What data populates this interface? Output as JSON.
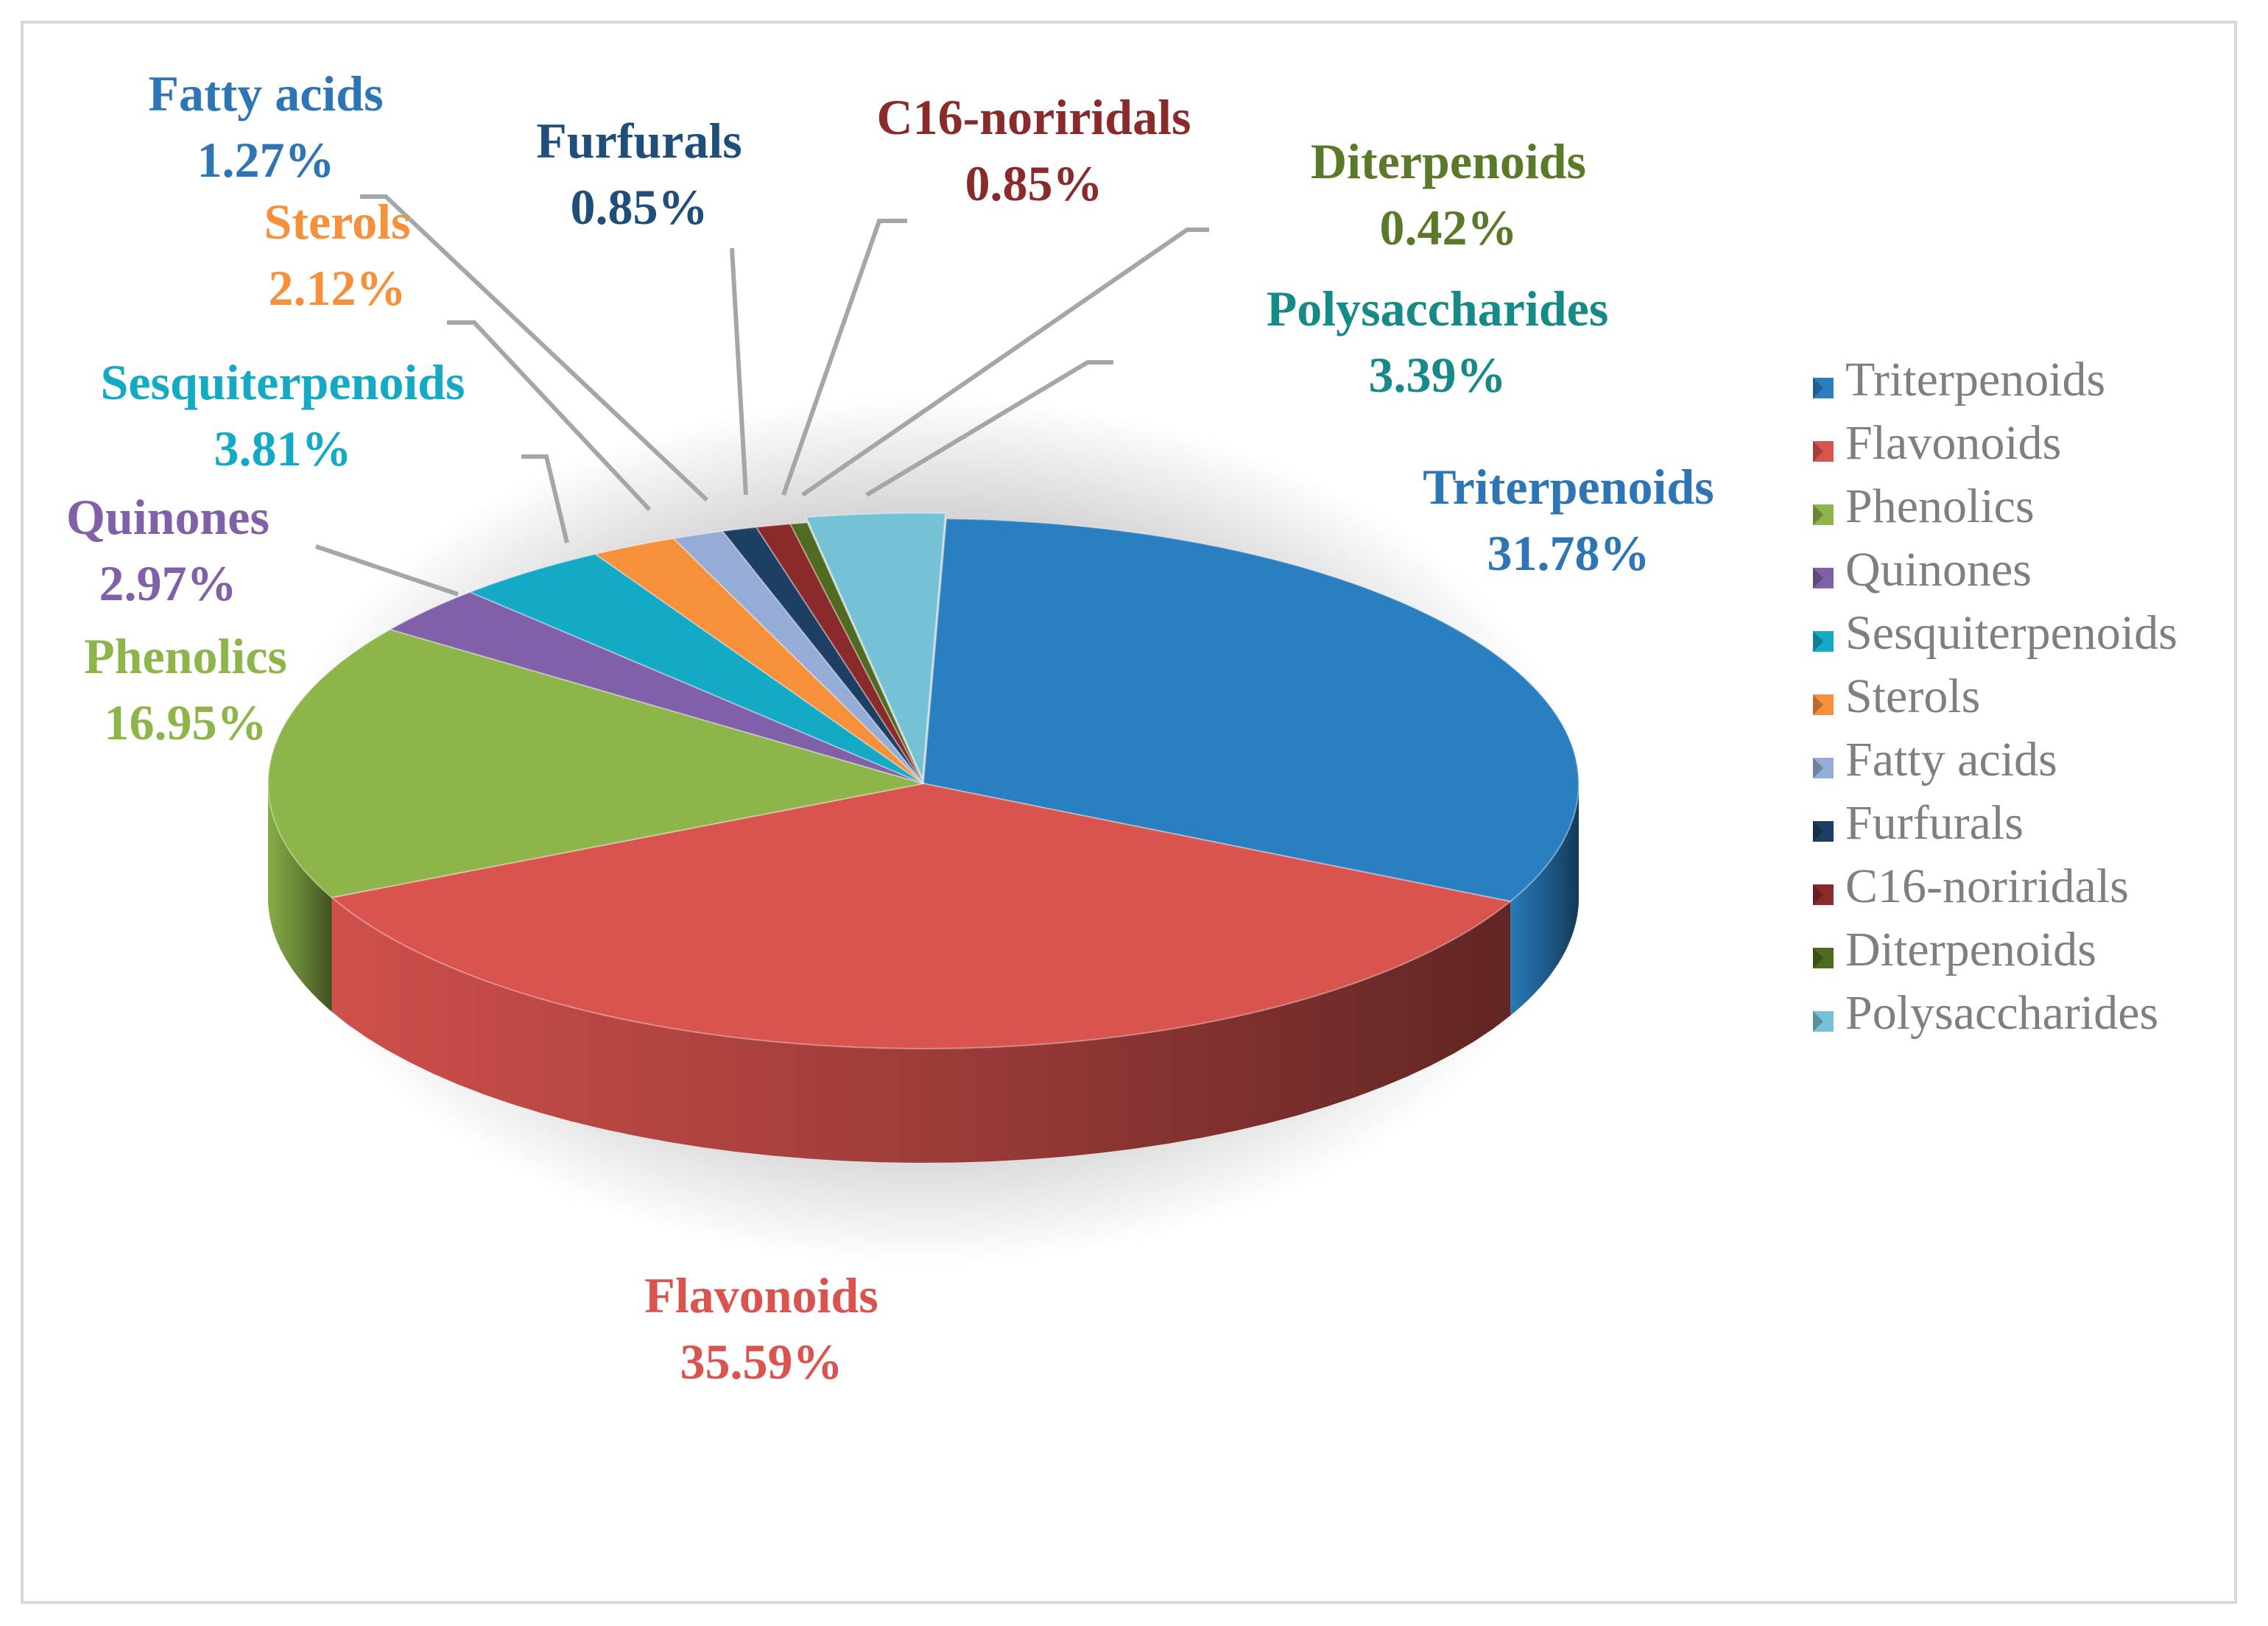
{
  "chart_data": {
    "type": "pie",
    "title": "",
    "legend_position": "right",
    "slices": [
      {
        "name": "Triterpenoids",
        "value": 31.78,
        "label_value": "31.78%",
        "color": "#2a7fc1",
        "label_color": "#2e75b6"
      },
      {
        "name": "Flavonoids",
        "value": 35.59,
        "label_value": "35.59%",
        "color": "#d9534f",
        "label_color": "#d9534f"
      },
      {
        "name": "Phenolics",
        "value": 16.95,
        "label_value": "16.95%",
        "color": "#8db54a",
        "label_color": "#8db54a"
      },
      {
        "name": "Quinones",
        "value": 2.97,
        "label_value": "2.97%",
        "color": "#8060a8",
        "label_color": "#8060a8"
      },
      {
        "name": "Sesquiterpenoids",
        "value": 3.81,
        "label_value": "3.81%",
        "color": "#14a9c4",
        "label_color": "#14a9c4"
      },
      {
        "name": "Sterols",
        "value": 2.12,
        "label_value": "2.12%",
        "color": "#f7903a",
        "label_color": "#f7903a"
      },
      {
        "name": "Fatty acids",
        "value": 1.27,
        "label_value": "1.27%",
        "color": "#94acd6",
        "label_color": "#2e75b6"
      },
      {
        "name": "Furfurals",
        "value": 0.85,
        "label_value": "0.85%",
        "color": "#1d3f63",
        "label_color": "#1f4e79"
      },
      {
        "name": "C16-noriridals",
        "value": 0.85,
        "label_value": "0.85%",
        "color": "#8b2a2a",
        "label_color": "#8b2a2a"
      },
      {
        "name": "Diterpenoids",
        "value": 0.42,
        "label_value": "0.42%",
        "color": "#4f6b22",
        "label_color": "#5a7a2a"
      },
      {
        "name": "Polysaccharides",
        "value": 3.39,
        "label_value": "3.39%",
        "color": "#75c2d6",
        "label_color": "#168a86"
      }
    ]
  }
}
